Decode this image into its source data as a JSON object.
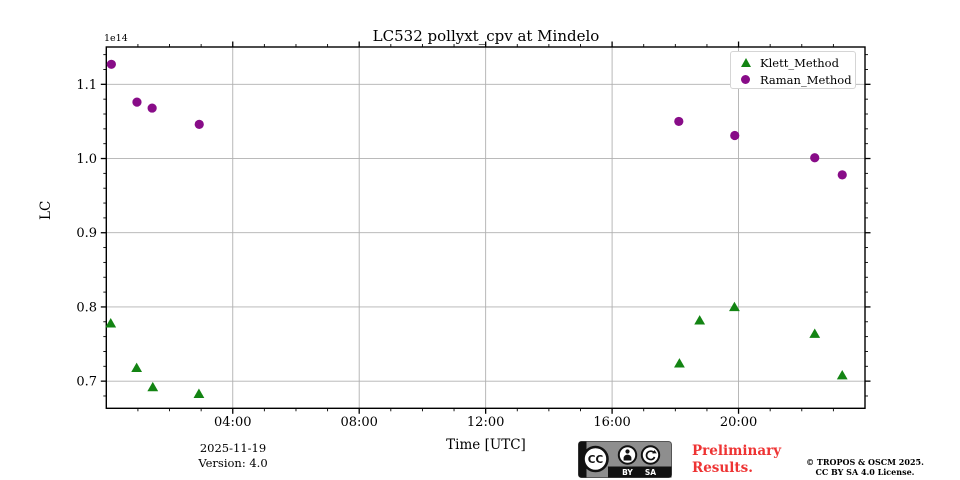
{
  "title": "LC532 pollyxt_cpv at Mindelo",
  "offset_label": "1e14",
  "xlabel": "Time [UTC]",
  "ylabel": "LC",
  "legend": {
    "klett_label": "Klett_Method",
    "raman_label": "Raman_Method"
  },
  "footer": {
    "date": "2025-11-19",
    "version": "Version: 4.0",
    "preliminary_line1": "Preliminary",
    "preliminary_line2": "Results.",
    "copyright_line1": "© TROPOS & OSCM 2025.",
    "copyright_line2": "CC BY SA 4.0 License.",
    "badge": {
      "cc": "CC",
      "by": "BY",
      "sa": "SA"
    }
  },
  "colors": {
    "klett_green": "#138413",
    "raman_purple": "#880c88",
    "preliminary_red": "#ee3333",
    "grid_gray": "#b0b0b0",
    "badge_gray": "#8e8e8e"
  },
  "chart_data": {
    "type": "scatter",
    "title": "LC532 pollyxt_cpv at Mindelo",
    "xlabel": "Time [UTC]",
    "ylabel": "LC",
    "y_offset_factor": "1e14",
    "grid": true,
    "legend_position": "upper right",
    "xlim_hours": [
      0,
      24
    ],
    "ylim": [
      0.6634,
      1.1503
    ],
    "x_major_ticks": [
      {
        "hour": 4,
        "label": "04:00"
      },
      {
        "hour": 8,
        "label": "08:00"
      },
      {
        "hour": 12,
        "label": "12:00"
      },
      {
        "hour": 16,
        "label": "16:00"
      },
      {
        "hour": 20,
        "label": "20:00"
      }
    ],
    "x_minor_step_hours": 1,
    "y_major_ticks": [
      {
        "value": 0.7,
        "label": "0.7"
      },
      {
        "value": 0.8,
        "label": "0.8"
      },
      {
        "value": 0.9,
        "label": "0.9"
      },
      {
        "value": 1.0,
        "label": "1.0"
      },
      {
        "value": 1.1,
        "label": "1.1"
      }
    ],
    "y_minor_step": 0.02,
    "series": [
      {
        "name": "Klett_Method",
        "marker": "triangle",
        "color": "#138413",
        "x_hours": [
          0.14,
          0.96,
          1.47,
          2.93,
          18.13,
          18.77,
          19.87,
          22.41,
          23.28
        ],
        "times": [
          "00:08",
          "00:58",
          "01:28",
          "02:56",
          "18:08",
          "18:46",
          "19:52",
          "22:25",
          "23:17"
        ],
        "values": [
          0.778,
          0.718,
          0.692,
          0.683,
          0.724,
          0.782,
          0.8,
          0.764,
          0.708
        ]
      },
      {
        "name": "Raman_Method",
        "marker": "circle",
        "color": "#880c88",
        "x_hours": [
          0.16,
          0.97,
          1.45,
          2.94,
          18.11,
          19.88,
          22.41,
          23.28
        ],
        "times": [
          "00:10",
          "00:58",
          "01:27",
          "02:56",
          "18:07",
          "19:53",
          "22:25",
          "23:17"
        ],
        "values": [
          1.127,
          1.076,
          1.068,
          1.046,
          1.05,
          1.031,
          1.001,
          0.978
        ]
      }
    ]
  }
}
